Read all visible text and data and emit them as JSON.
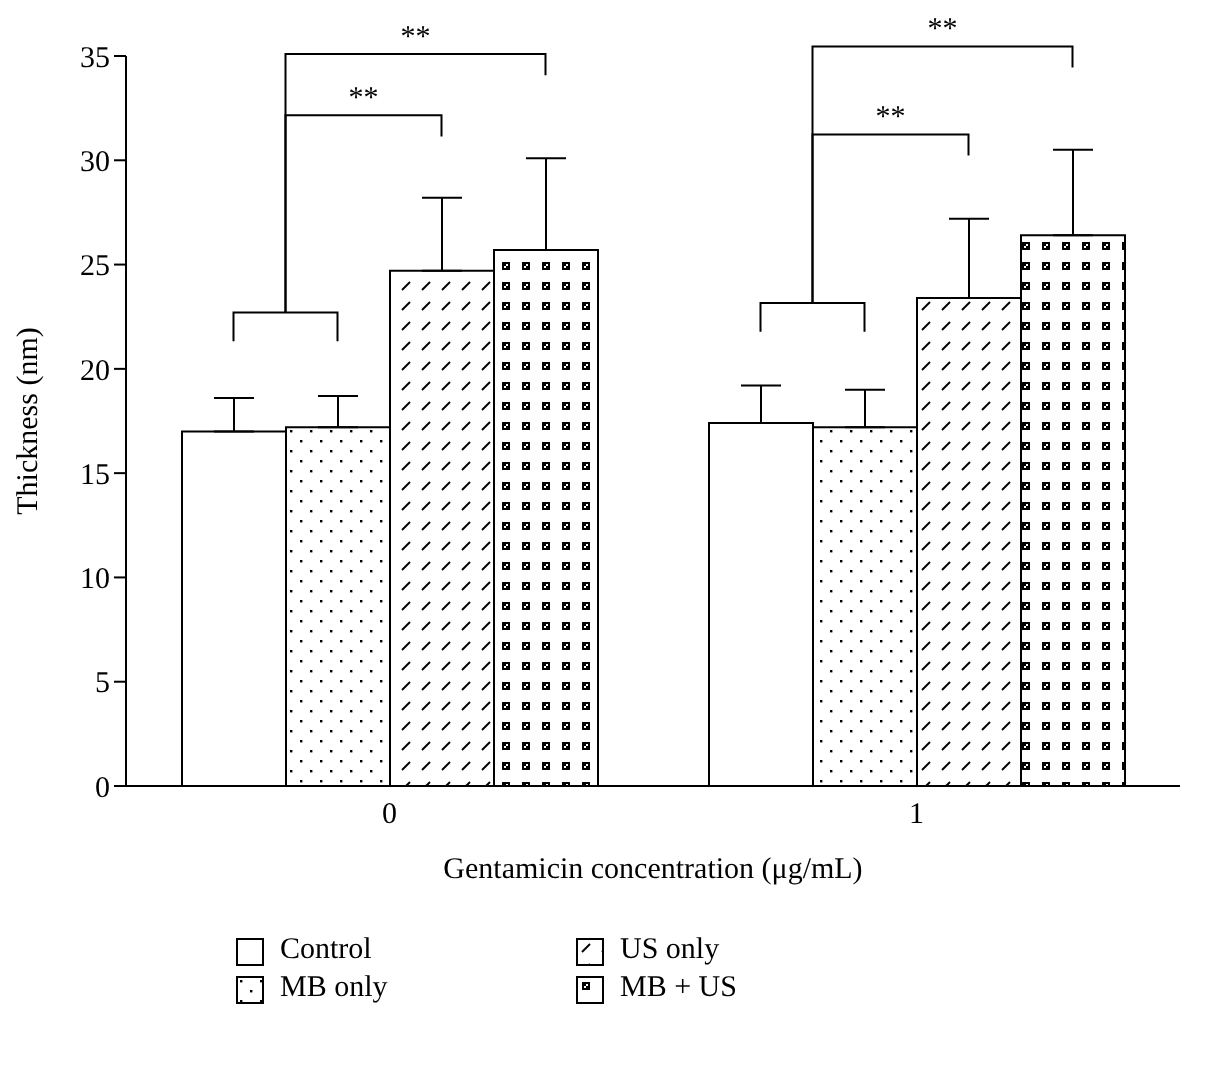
{
  "chart_data": {
    "type": "bar",
    "xlabel": "Gentamicin concentration (μg/mL)",
    "ylabel": "Thickness (nm)",
    "categories": [
      "0",
      "1"
    ],
    "series": [
      {
        "name": "Control",
        "color": "#000000",
        "values": [
          17.0,
          17.4
        ],
        "errors": [
          [
            17.0,
            18.6
          ],
          [
            17.4,
            19.2
          ]
        ]
      },
      {
        "name": "MB only",
        "color": "#000000",
        "values": [
          17.2,
          17.2
        ],
        "errors": [
          [
            17.2,
            18.7
          ],
          [
            17.2,
            19.0
          ]
        ]
      },
      {
        "name": "US only",
        "color": "#000000",
        "values": [
          24.7,
          23.4
        ],
        "errors": [
          [
            24.7,
            28.2
          ],
          [
            23.4,
            27.2
          ]
        ]
      },
      {
        "name": "MB + US",
        "color": "#000000",
        "values": [
          25.7,
          26.4
        ],
        "errors": [
          [
            25.7,
            30.1
          ],
          [
            26.4,
            30.5
          ]
        ]
      }
    ],
    "ylim": [
      0,
      35
    ],
    "yticks": [
      0,
      5,
      10,
      15,
      20,
      25,
      30,
      35
    ],
    "grid": false,
    "legend": "bottom",
    "annotations": [
      "**",
      "**",
      "**",
      "**"
    ]
  }
}
